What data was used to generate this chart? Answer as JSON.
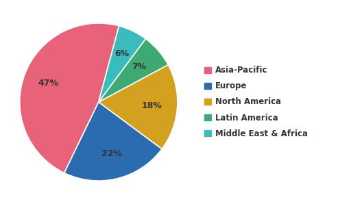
{
  "labels": [
    "Asia-Pacific",
    "Europe",
    "North America",
    "Latin America",
    "Middle East & Africa"
  ],
  "values": [
    47,
    22,
    18,
    7,
    6
  ],
  "colors": [
    "#E8637A",
    "#2B6CB0",
    "#D4A020",
    "#3DAA72",
    "#3ABCBC"
  ],
  "startangle": 75,
  "background_color": "#ffffff",
  "legend_fontsize": 8.5,
  "autopct_fontsize": 9,
  "figsize": [
    4.96,
    2.98
  ],
  "dpi": 100,
  "pctdistance": 0.68,
  "wedge_linewidth": 1.2,
  "wedge_edgecolor": "#ffffff"
}
